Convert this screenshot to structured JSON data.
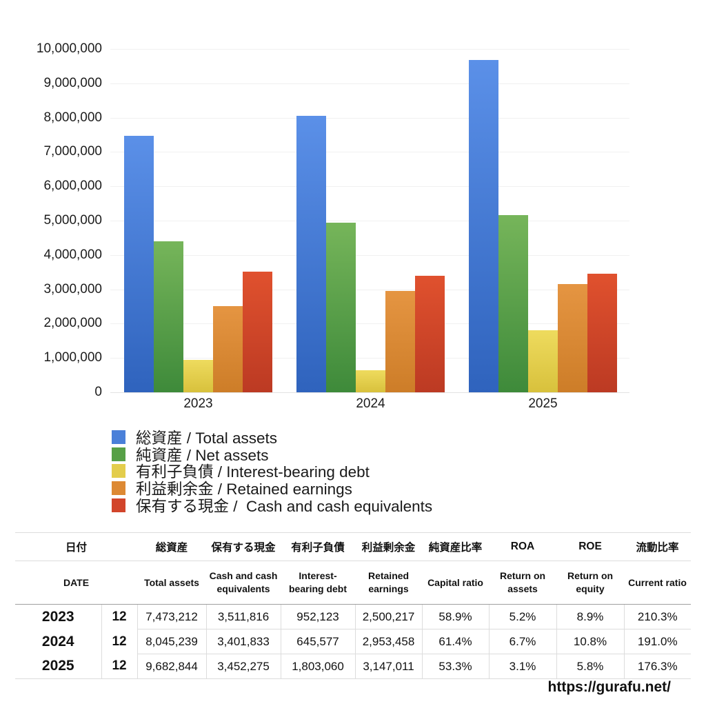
{
  "chart_data": {
    "type": "bar",
    "categories": [
      "2023",
      "2024",
      "2025"
    ],
    "series": [
      {
        "key": "total-assets",
        "label": "総資産 / Total assets",
        "values": [
          7473212,
          8045239,
          9682844
        ],
        "color_top": "#5b90e8",
        "color_bottom": "#2f63bd",
        "legend_color": "#4a80d9"
      },
      {
        "key": "net-assets",
        "label": "純資産 / Net assets",
        "values": [
          4401722,
          4939777,
          5160956
        ],
        "color_top": "#76b55a",
        "color_bottom": "#3e8a3a",
        "legend_color": "#57a047"
      },
      {
        "key": "interest-bearing-debt",
        "label": "有利子負債 / Interest-bearing debt",
        "values": [
          952123,
          645577,
          1803060
        ],
        "color_top": "#eedb5e",
        "color_bottom": "#d8c13c",
        "legend_color": "#e3cd4c"
      },
      {
        "key": "retained-earnings",
        "label": "利益剰余金 / Retained earnings",
        "values": [
          2500217,
          2953458,
          3147011
        ],
        "color_top": "#e59542",
        "color_bottom": "#cd7d28",
        "legend_color": "#dd8933"
      },
      {
        "key": "cash",
        "label": "保有する現金 /  Cash and cash equivalents",
        "values": [
          3511816,
          3401833,
          3452275
        ],
        "color_top": "#e0512e",
        "color_bottom": "#bc3a23",
        "legend_color": "#d2452b"
      }
    ],
    "title": "",
    "xlabel": "",
    "ylabel": "",
    "ylim": [
      0,
      10000000
    ],
    "y_ticks": [
      "0",
      "1,000,000",
      "2,000,000",
      "3,000,000",
      "4,000,000",
      "5,000,000",
      "6,000,000",
      "7,000,000",
      "8,000,000",
      "9,000,000",
      "10,000,000"
    ],
    "grid": true,
    "legend_position": "bottom-left"
  },
  "table": {
    "headers_ja": [
      "日付",
      "総資産",
      "保有する現金",
      "有利子負債",
      "利益剰余金",
      "純資産比率",
      "ROA",
      "ROE",
      "流動比率"
    ],
    "headers_en": [
      "DATE",
      "Total assets",
      "Cash and cash equivalents",
      "Interest-bearing debt",
      "Retained earnings",
      "Capital ratio",
      "Return on assets",
      "Return on equity",
      "Current ratio"
    ],
    "rows": [
      {
        "year": "2023",
        "month": "12",
        "values": [
          "7,473,212",
          "3,511,816",
          "952,123",
          "2,500,217",
          "58.9%",
          "5.2%",
          "8.9%",
          "210.3%"
        ]
      },
      {
        "year": "2024",
        "month": "12",
        "values": [
          "8,045,239",
          "3,401,833",
          "645,577",
          "2,953,458",
          "61.4%",
          "6.7%",
          "10.8%",
          "191.0%"
        ]
      },
      {
        "year": "2025",
        "month": "12",
        "values": [
          "9,682,844",
          "3,452,275",
          "1,803,060",
          "3,147,011",
          "53.3%",
          "3.1%",
          "5.8%",
          "176.3%"
        ]
      }
    ]
  },
  "footer": {
    "url": "https://gurafu.net/"
  }
}
